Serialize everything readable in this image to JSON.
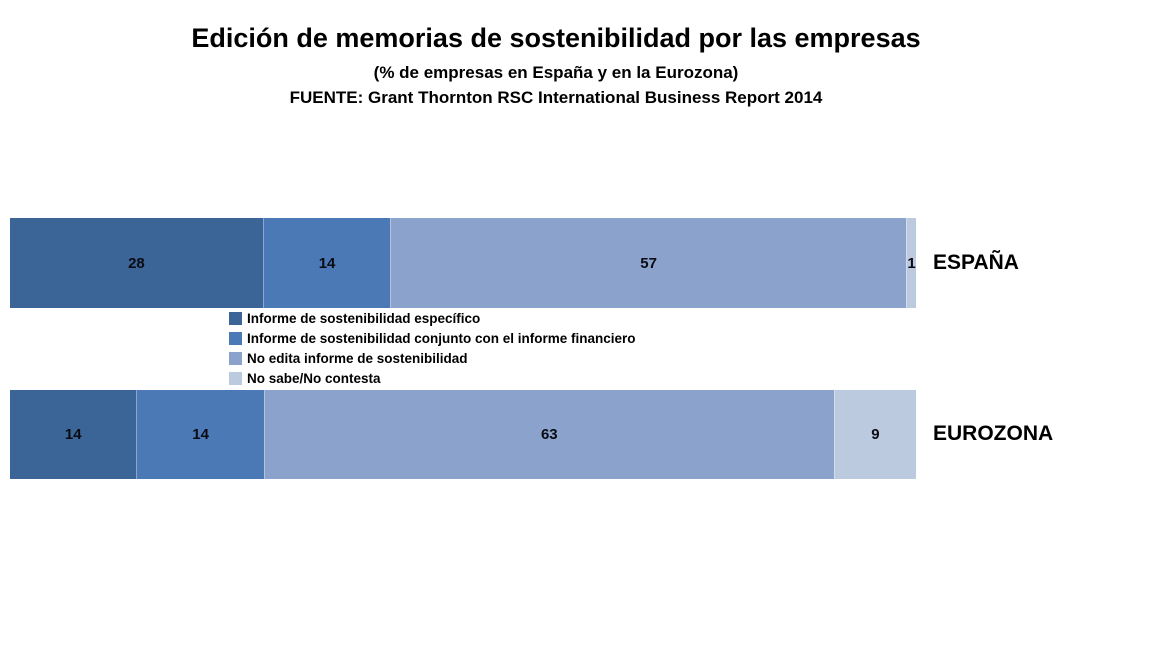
{
  "chart_data": {
    "type": "bar",
    "orientation": "horizontal-stacked",
    "title": "Edición de memorias de sostenibilidad por las empresas",
    "subtitle": "(% de empresas en España y en la Eurozona)",
    "source": "FUENTE: Grant Thornton RSC International Business Report 2014",
    "categories": [
      "ESPAÑA",
      "EUROZONA"
    ],
    "series": [
      {
        "name": "Informe de sostenibilidad específico",
        "color": "#3A6596",
        "values": [
          28,
          14
        ]
      },
      {
        "name": "Informe de sostenibilidad conjunto con el informe financiero",
        "color": "#4A79B5",
        "values": [
          14,
          14
        ]
      },
      {
        "name": "No edita informe de sostenibilidad",
        "color": "#8BA3CC",
        "values": [
          57,
          63
        ]
      },
      {
        "name": "No sabe/No contesta",
        "color": "#BCCAE0",
        "values": [
          1,
          9
        ]
      }
    ],
    "xlim": [
      0,
      100
    ],
    "unit": "%",
    "grid": false,
    "legend_position": "between-bars"
  }
}
